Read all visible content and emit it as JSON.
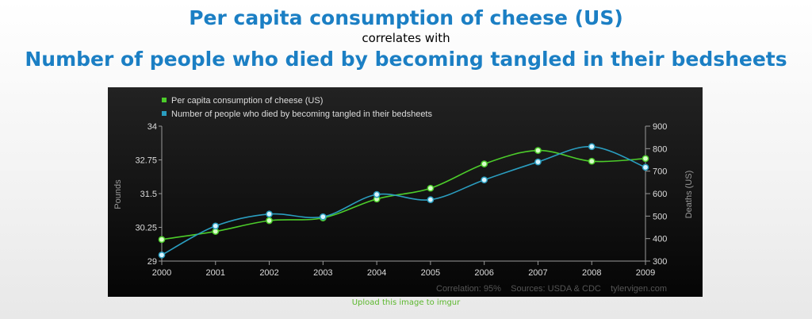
{
  "header": {
    "title1": "Per capita consumption of cheese (US)",
    "connector": "correlates with",
    "title2": "Number of people who died by becoming tangled in their bedsheets"
  },
  "footer": {
    "upload_link": "Upload this image to imgur"
  },
  "chart_data": {
    "type": "line",
    "categories": [
      "2000",
      "2001",
      "2002",
      "2003",
      "2004",
      "2005",
      "2006",
      "2007",
      "2008",
      "2009"
    ],
    "series": [
      {
        "name": "Per capita consumption of cheese (US)",
        "axis": "left",
        "color": "#4ccc2a",
        "values": [
          29.8,
          30.1,
          30.5,
          30.6,
          31.3,
          31.7,
          32.6,
          33.1,
          32.7,
          32.8
        ]
      },
      {
        "name": "Number of people who died by becoming tangled in their bedsheets",
        "axis": "right",
        "color": "#2a9dbf",
        "values": [
          327,
          456,
          509,
          497,
          596,
          573,
          661,
          741,
          809,
          717
        ]
      }
    ],
    "ylabel": "Pounds",
    "ylim": [
      29,
      34
    ],
    "yticks": [
      "29",
      "30.25",
      "31.5",
      "32.75",
      "34"
    ],
    "y2label": "Deaths (US)",
    "y2lim": [
      300,
      900
    ],
    "y2ticks": [
      "300",
      "400",
      "500",
      "600",
      "700",
      "800",
      "900"
    ],
    "legend": "top-left",
    "annotation": "Correlation: 95%    Sources: USDA & CDC    tylervigen.com"
  }
}
